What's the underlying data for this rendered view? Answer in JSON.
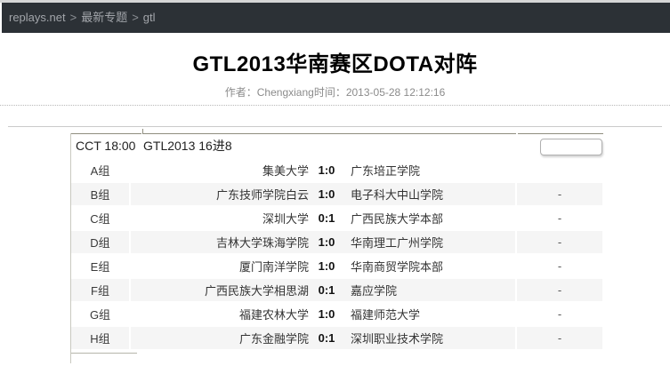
{
  "breadcrumb": {
    "items": {
      "0": "replays.net",
      "1": "最新专题",
      "2": "gtl"
    },
    "separator": ">"
  },
  "article": {
    "title": "GTL2013华南赛区DOTA对阵",
    "author_label": "作者：",
    "author": "Chengxiang",
    "time_label": "时间：",
    "timestamp": "2013-05-28 12:12:16"
  },
  "table": {
    "header": {
      "time": "CCT 18:00",
      "title": "GTL2013 16进8"
    },
    "rows": [
      {
        "group": "A组",
        "team1": "集美大学",
        "score": "1:0",
        "team2": "广东培正学院",
        "note": ""
      },
      {
        "group": "B组",
        "team1": "广东技师学院白云",
        "score": "1:0",
        "team2": "电子科大中山学院",
        "note": "-"
      },
      {
        "group": "C组",
        "team1": "深圳大学",
        "score": "0:1",
        "team2": "广西民族大学本部",
        "note": "-"
      },
      {
        "group": "D组",
        "team1": "吉林大学珠海学院",
        "score": "1:0",
        "team2": "华南理工广州学院",
        "note": "-"
      },
      {
        "group": "E组",
        "team1": "厦门南洋学院",
        "score": "1:0",
        "team2": "华南商贸学院本部",
        "note": "-"
      },
      {
        "group": "F组",
        "team1": "广西民族大学相思湖",
        "score": "0:1",
        "team2": "嘉应学院",
        "note": "-"
      },
      {
        "group": "G组",
        "team1": "福建农林大学",
        "score": "1:0",
        "team2": "福建师范大学",
        "note": "-"
      },
      {
        "group": "H组",
        "team1": "广东金融学院",
        "score": "0:1",
        "team2": "深圳职业技术学院",
        "note": "-"
      }
    ]
  },
  "colors": {
    "topbar_bg": "#2c3136",
    "breadcrumb_text": "#a2a5aa",
    "row_stripe": "#f5f5f5",
    "table_border": "#8f8d7f"
  }
}
